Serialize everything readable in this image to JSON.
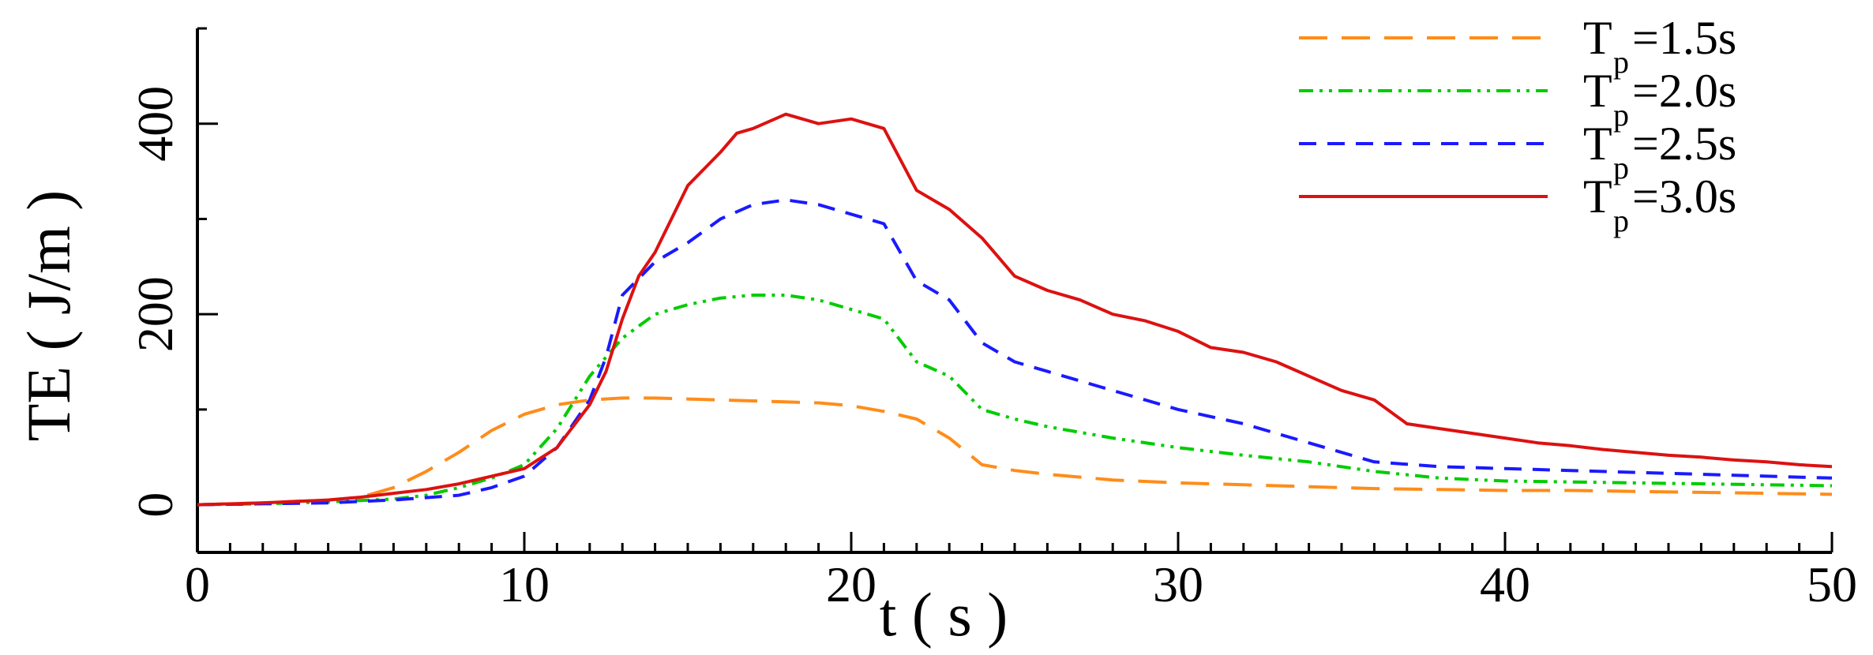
{
  "chart_data": {
    "type": "line",
    "xlabel": "t ( s )",
    "ylabel": "TE ( J/m )",
    "xlim": [
      0,
      50
    ],
    "ylim": [
      -50,
      500
    ],
    "x_ticks": [
      0,
      10,
      20,
      30,
      40,
      50
    ],
    "y_ticks": [
      0,
      200,
      400
    ],
    "grid": false,
    "legend_position": "top-right",
    "series": [
      {
        "name": "T_p =1.5s",
        "legend_main": "T",
        "legend_sub": "p",
        "legend_value": "=1.5s",
        "color": "#ff8c1a",
        "style": "long-dash",
        "x": [
          0,
          2,
          4,
          5,
          6,
          7,
          8,
          9,
          10,
          11,
          12,
          13,
          14,
          15,
          16,
          17,
          18,
          19,
          20,
          21,
          22,
          23,
          24,
          25,
          26,
          27,
          28,
          30,
          32,
          34,
          36,
          38,
          40,
          42,
          44,
          46,
          48,
          50
        ],
        "y": [
          0,
          2,
          5,
          8,
          18,
          35,
          55,
          78,
          95,
          105,
          110,
          112,
          112,
          111,
          110,
          109,
          108,
          107,
          104,
          98,
          90,
          70,
          42,
          36,
          32,
          29,
          26,
          23,
          21,
          19,
          17,
          16,
          15,
          15,
          14,
          13,
          12,
          11
        ]
      },
      {
        "name": "T_p =2.0s",
        "legend_main": "T",
        "legend_sub": "p",
        "legend_value": "=2.0s",
        "color": "#00cc00",
        "style": "dash-dot-dot",
        "x": [
          0,
          2,
          4,
          6,
          7,
          8,
          9,
          10,
          11,
          12,
          12.5,
          13,
          14,
          15,
          16,
          17,
          18,
          19,
          20,
          21,
          22,
          23,
          24,
          25,
          26,
          28,
          30,
          32,
          34,
          36,
          38,
          40,
          42,
          44,
          46,
          48,
          50
        ],
        "y": [
          0,
          1,
          3,
          6,
          10,
          18,
          28,
          42,
          80,
          135,
          155,
          175,
          200,
          210,
          217,
          220,
          220,
          215,
          205,
          195,
          150,
          135,
          100,
          90,
          82,
          70,
          60,
          52,
          45,
          35,
          28,
          25,
          24,
          23,
          22,
          21,
          20
        ]
      },
      {
        "name": "T_p =2.5s",
        "legend_main": "T",
        "legend_sub": "p",
        "legend_value": "=2.5s",
        "color": "#1a1aff",
        "style": "dash",
        "x": [
          0,
          2,
          4,
          6,
          8,
          9,
          10,
          11,
          12,
          12.5,
          13,
          14,
          15,
          16,
          17,
          18,
          19,
          20,
          21,
          22,
          23,
          24,
          25,
          26,
          28,
          30,
          32,
          34,
          36,
          38,
          40,
          42,
          44,
          46,
          48,
          50
        ],
        "y": [
          0,
          1,
          2,
          5,
          10,
          18,
          30,
          60,
          110,
          155,
          220,
          255,
          275,
          300,
          315,
          320,
          315,
          305,
          295,
          235,
          215,
          170,
          150,
          140,
          120,
          100,
          85,
          65,
          45,
          40,
          38,
          36,
          34,
          32,
          30,
          28
        ]
      },
      {
        "name": "T_p =3.0s",
        "legend_main": "T",
        "legend_sub": "p",
        "legend_value": "=3.0s",
        "color": "#dd1111",
        "style": "solid",
        "x": [
          0,
          2,
          4,
          5,
          6,
          7,
          8,
          9,
          10,
          11,
          12,
          12.5,
          13,
          13.5,
          14,
          15,
          16,
          16.5,
          17,
          18,
          19,
          20,
          21,
          22,
          23,
          24,
          25,
          26,
          27,
          28,
          29,
          30,
          31,
          32,
          33,
          34,
          35,
          36,
          37,
          38,
          39,
          40,
          41,
          42,
          43,
          44,
          45,
          46,
          47,
          48,
          49,
          50
        ],
        "y": [
          0,
          2,
          5,
          8,
          12,
          16,
          22,
          30,
          38,
          60,
          105,
          140,
          195,
          240,
          265,
          335,
          370,
          390,
          395,
          410,
          400,
          405,
          395,
          330,
          310,
          280,
          240,
          225,
          215,
          200,
          193,
          182,
          165,
          160,
          150,
          135,
          120,
          110,
          85,
          80,
          75,
          70,
          65,
          62,
          58,
          55,
          52,
          50,
          47,
          45,
          42,
          40
        ]
      }
    ]
  }
}
